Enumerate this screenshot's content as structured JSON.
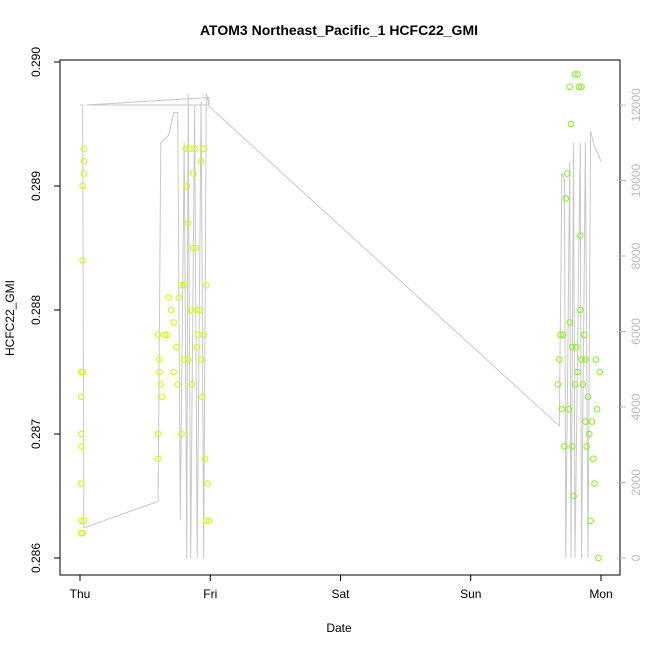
{
  "chart_data": {
    "type": "scatter",
    "title": "ATOM3 Northeast_Pacific_1 HCFC22_GMI",
    "xlabel": "Date",
    "ylabel": "HCFC22_GMI",
    "x_ticks": [
      "Thu",
      "Fri",
      "Sat",
      "Sun",
      "Mon"
    ],
    "x_range_days": [
      0,
      4
    ],
    "ylim": [
      0.286,
      0.29
    ],
    "y_ticks": [
      "0.286",
      "0.287",
      "0.288",
      "0.289",
      "0.290"
    ],
    "y2lim": [
      0,
      12000
    ],
    "y2_ticks": [
      "0",
      "2000",
      "4000",
      "6000",
      "8000",
      "10000",
      "12000"
    ],
    "grid": false,
    "colors": {
      "early_points": "#ccff00",
      "late_points": "#88ee22",
      "altitude_line": "#c8c8c8"
    },
    "series": [
      {
        "role": "HCFC22_GMI observations (left axis)",
        "points": [
          [
            0.01,
            0.2863
          ],
          [
            0.01,
            0.2862
          ],
          [
            0.01,
            0.2866
          ],
          [
            0.01,
            0.2873
          ],
          [
            0.01,
            0.2875
          ],
          [
            0.01,
            0.2869
          ],
          [
            0.01,
            0.287
          ],
          [
            0.02,
            0.2875
          ],
          [
            0.02,
            0.2862
          ],
          [
            0.02,
            0.2884
          ],
          [
            0.02,
            0.289
          ],
          [
            0.03,
            0.2892
          ],
          [
            0.03,
            0.2893
          ],
          [
            0.03,
            0.2891
          ],
          [
            0.03,
            0.2863
          ],
          [
            0.6,
            0.2878
          ],
          [
            0.6,
            0.287
          ],
          [
            0.6,
            0.2868
          ],
          [
            0.61,
            0.2875
          ],
          [
            0.61,
            0.2876
          ],
          [
            0.62,
            0.2874
          ],
          [
            0.63,
            0.2873
          ],
          [
            0.65,
            0.2878
          ],
          [
            0.67,
            0.2878
          ],
          [
            0.68,
            0.2881
          ],
          [
            0.7,
            0.288
          ],
          [
            0.72,
            0.2879
          ],
          [
            0.74,
            0.2877
          ],
          [
            0.76,
            0.2881
          ],
          [
            0.78,
            0.2882
          ],
          [
            0.8,
            0.2882
          ],
          [
            0.81,
            0.2893
          ],
          [
            0.82,
            0.289
          ],
          [
            0.83,
            0.2876
          ],
          [
            0.84,
            0.2893
          ],
          [
            0.85,
            0.288
          ],
          [
            0.86,
            0.2874
          ],
          [
            0.87,
            0.2891
          ],
          [
            0.88,
            0.2893
          ],
          [
            0.89,
            0.2885
          ],
          [
            0.9,
            0.2877
          ],
          [
            0.91,
            0.2878
          ],
          [
            0.92,
            0.288
          ],
          [
            0.93,
            0.2876
          ],
          [
            0.94,
            0.2873
          ],
          [
            0.95,
            0.2893
          ],
          [
            0.96,
            0.2868
          ],
          [
            0.97,
            0.2863
          ],
          [
            0.98,
            0.2866
          ],
          [
            0.99,
            0.2863
          ],
          [
            0.72,
            0.2875
          ],
          [
            0.75,
            0.2874
          ],
          [
            0.78,
            0.287
          ],
          [
            0.8,
            0.2876
          ],
          [
            0.83,
            0.2887
          ],
          [
            0.87,
            0.2885
          ],
          [
            0.9,
            0.288
          ],
          [
            0.93,
            0.2892
          ],
          [
            0.95,
            0.2878
          ],
          [
            0.97,
            0.2882
          ],
          [
            3.67,
            0.2874
          ],
          [
            3.68,
            0.2876
          ],
          [
            3.69,
            0.2878
          ],
          [
            3.7,
            0.2872
          ],
          [
            3.71,
            0.2878
          ],
          [
            3.72,
            0.2869
          ],
          [
            3.73,
            0.2889
          ],
          [
            3.74,
            0.2891
          ],
          [
            3.75,
            0.2872
          ],
          [
            3.76,
            0.2879
          ],
          [
            3.77,
            0.2895
          ],
          [
            3.78,
            0.2869
          ],
          [
            3.79,
            0.2865
          ],
          [
            3.8,
            0.2899
          ],
          [
            3.81,
            0.2877
          ],
          [
            3.82,
            0.2875
          ],
          [
            3.83,
            0.2898
          ],
          [
            3.84,
            0.2886
          ],
          [
            3.85,
            0.2876
          ],
          [
            3.86,
            0.2874
          ],
          [
            3.87,
            0.2878
          ],
          [
            3.88,
            0.2871
          ],
          [
            3.89,
            0.2869
          ],
          [
            3.9,
            0.2873
          ],
          [
            3.91,
            0.287
          ],
          [
            3.92,
            0.2863
          ],
          [
            3.93,
            0.2871
          ],
          [
            3.94,
            0.2868
          ],
          [
            3.95,
            0.2866
          ],
          [
            3.96,
            0.2876
          ],
          [
            3.97,
            0.2872
          ],
          [
            3.98,
            0.286
          ],
          [
            3.99,
            0.2875
          ],
          [
            3.76,
            0.2898
          ],
          [
            3.82,
            0.2899
          ],
          [
            3.85,
            0.2898
          ],
          [
            3.78,
            0.2877
          ],
          [
            3.8,
            0.2874
          ],
          [
            3.84,
            0.288
          ],
          [
            3.88,
            0.2876
          ]
        ]
      },
      {
        "role": "altitude trace (right axis)",
        "points": [
          [
            0.0,
            12000
          ],
          [
            0.02,
            12000
          ],
          [
            0.03,
            800
          ],
          [
            0.6,
            1500
          ],
          [
            0.62,
            11000
          ],
          [
            0.68,
            11200
          ],
          [
            0.72,
            11800
          ],
          [
            0.75,
            11800
          ],
          [
            0.77,
            1000
          ],
          [
            0.8,
            11000
          ],
          [
            0.82,
            0
          ],
          [
            0.83,
            12300
          ],
          [
            0.85,
            0
          ],
          [
            0.88,
            12000
          ],
          [
            0.9,
            0
          ],
          [
            0.93,
            12100
          ],
          [
            0.95,
            0
          ],
          [
            0.97,
            12300
          ],
          [
            0.99,
            12000
          ],
          [
            0.99,
            12200
          ],
          [
            0.05,
            12000
          ],
          [
            0.98,
            12000
          ],
          [
            3.68,
            3500
          ],
          [
            3.7,
            10200
          ],
          [
            3.72,
            10000
          ],
          [
            3.73,
            0
          ],
          [
            3.76,
            10500
          ],
          [
            3.77,
            0
          ],
          [
            3.79,
            11000
          ],
          [
            3.8,
            0
          ],
          [
            3.84,
            11000
          ],
          [
            3.85,
            0
          ],
          [
            3.88,
            11000
          ],
          [
            3.9,
            0
          ],
          [
            3.92,
            11300
          ],
          [
            3.95,
            10900
          ],
          [
            3.98,
            10700
          ],
          [
            4.0,
            10500
          ]
        ]
      }
    ]
  }
}
